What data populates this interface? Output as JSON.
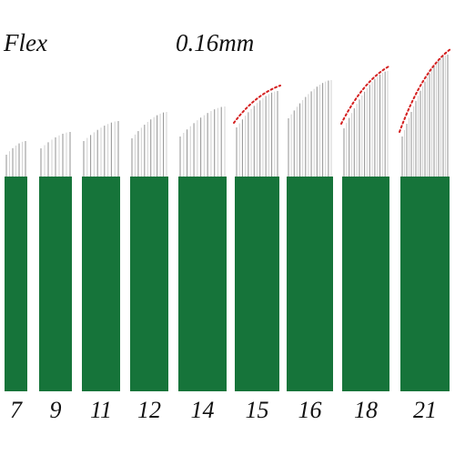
{
  "title_left": "Flex",
  "title_right": "0.16mm",
  "colors": {
    "base": "#16743a",
    "needle": "#9a9a9a",
    "needle_highlight": "#d4d4d4",
    "curve_marker": "#d42020"
  },
  "blades": [
    {
      "label": "7",
      "pin_count": 7,
      "curve_marked": false
    },
    {
      "label": "9",
      "pin_count": 9,
      "curve_marked": false
    },
    {
      "label": "11",
      "pin_count": 11,
      "curve_marked": false
    },
    {
      "label": "12",
      "pin_count": 12,
      "curve_marked": false
    },
    {
      "label": "14",
      "pin_count": 14,
      "curve_marked": false
    },
    {
      "label": "15",
      "pin_count": 15,
      "curve_marked": true
    },
    {
      "label": "16",
      "pin_count": 16,
      "curve_marked": false
    },
    {
      "label": "18",
      "pin_count": 18,
      "curve_marked": true
    },
    {
      "label": "21",
      "pin_count": 21,
      "curve_marked": true
    }
  ]
}
